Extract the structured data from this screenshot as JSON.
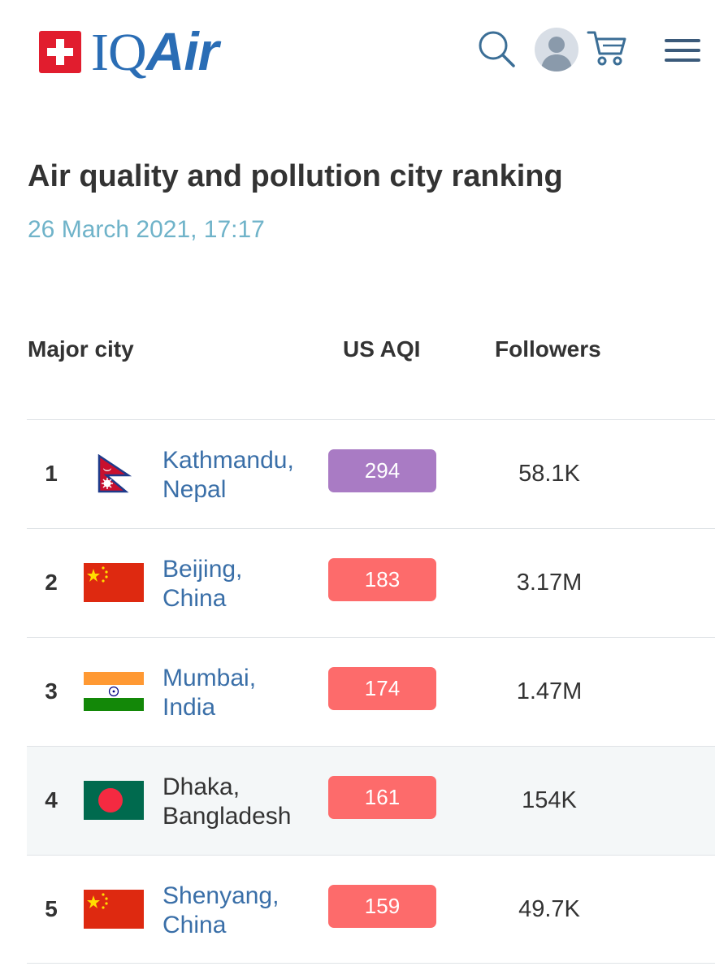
{
  "brand": {
    "name_main": "IQ",
    "name_accent": "Air"
  },
  "header_icons": [
    "search-icon",
    "user-avatar-icon",
    "cart-icon",
    "menu-icon"
  ],
  "title": "Air quality and pollution city ranking",
  "date": "26 March 2021, 17:17",
  "columns": {
    "city": "Major city",
    "aqi": "US AQI",
    "followers": "Followers"
  },
  "colors": {
    "brand_blue": "#2a6db5",
    "brand_red": "#e11d2e",
    "aqi_hazardous": "#a97bc4",
    "aqi_unhealthy": "#fd6b6b",
    "link_blue": "#3a6fa8",
    "date_teal": "#6fb3c9"
  },
  "rows": [
    {
      "rank": "1",
      "city_line1": "Kathmandu,",
      "city_line2": "Nepal",
      "flag": "nepal-flag-icon",
      "aqi": "294",
      "aqi_color": "#a97bc4",
      "followers": "58.1K",
      "highlight": false,
      "link": true
    },
    {
      "rank": "2",
      "city_line1": "Beijing,",
      "city_line2": "China",
      "flag": "china-flag-icon",
      "aqi": "183",
      "aqi_color": "#fd6b6b",
      "followers": "3.17M",
      "highlight": false,
      "link": true
    },
    {
      "rank": "3",
      "city_line1": "Mumbai,",
      "city_line2": "India",
      "flag": "india-flag-icon",
      "aqi": "174",
      "aqi_color": "#fd6b6b",
      "followers": "1.47M",
      "highlight": false,
      "link": true
    },
    {
      "rank": "4",
      "city_line1": "Dhaka,",
      "city_line2": "Bangladesh",
      "flag": "bangladesh-flag-icon",
      "aqi": "161",
      "aqi_color": "#fd6b6b",
      "followers": "154K",
      "highlight": true,
      "link": false
    },
    {
      "rank": "5",
      "city_line1": "Shenyang,",
      "city_line2": "China",
      "flag": "china-flag-icon",
      "aqi": "159",
      "aqi_color": "#fd6b6b",
      "followers": "49.7K",
      "highlight": false,
      "link": true
    }
  ]
}
